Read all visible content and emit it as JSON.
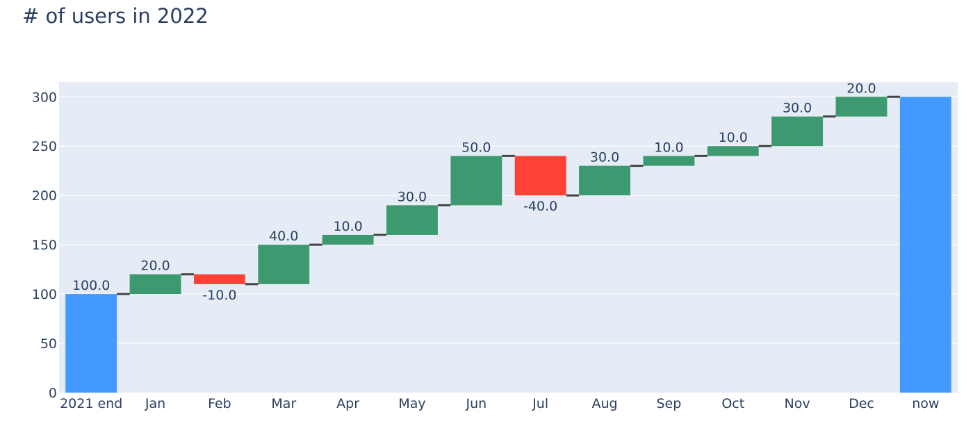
{
  "chart_data": {
    "type": "waterfall",
    "title": "# of users in 2022",
    "xlabel": "",
    "ylabel": "",
    "ylim": [
      0,
      315
    ],
    "yticks": [
      0,
      50,
      100,
      150,
      200,
      250,
      300
    ],
    "grid": true,
    "categories": [
      "2021 end",
      "Jan",
      "Feb",
      "Mar",
      "Apr",
      "May",
      "Jun",
      "Jul",
      "Aug",
      "Sep",
      "Oct",
      "Nov",
      "Dec",
      "now"
    ],
    "measure": [
      "absolute",
      "relative",
      "relative",
      "relative",
      "relative",
      "relative",
      "relative",
      "relative",
      "relative",
      "relative",
      "relative",
      "relative",
      "relative",
      "total"
    ],
    "values": [
      100,
      20,
      -10,
      40,
      10,
      30,
      50,
      -40,
      30,
      10,
      10,
      30,
      20,
      300
    ],
    "labels": [
      "100.0",
      "20.0",
      "-10.0",
      "40.0",
      "10.0",
      "30.0",
      "50.0",
      "-40.0",
      "30.0",
      "10.0",
      "10.0",
      "30.0",
      "20.0",
      ""
    ],
    "colors": {
      "increasing": "#3d9970",
      "decreasing": "#ff4136",
      "totals": "#4499ff",
      "connector": "#444444",
      "plot_bg": "#e5ecf6",
      "grid": "#ffffff",
      "text": "#2a3f5f"
    }
  }
}
